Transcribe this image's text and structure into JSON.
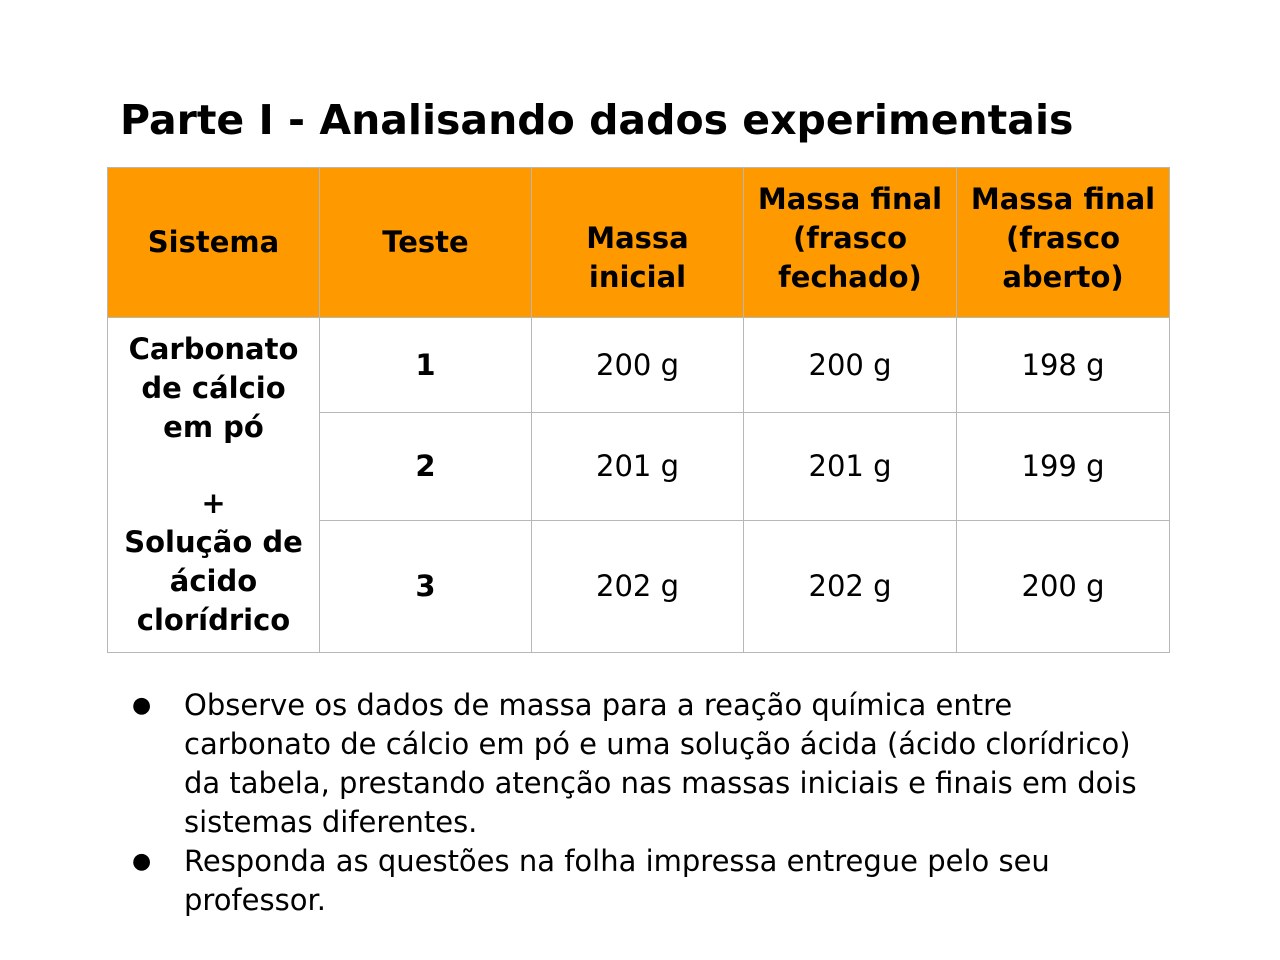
{
  "title": "Parte I - Analisando dados experimentais",
  "table": {
    "headers": [
      "Sistema",
      "Teste",
      "Massa inicial",
      "Massa final (frasco fechado)",
      "Massa final (frasco aberto)"
    ],
    "system": {
      "line1": "Carbonato de cálcio em pó",
      "plus": "+",
      "line2": "Solução de ácido clorídrico"
    },
    "rows": [
      {
        "teste": "1",
        "inicial": "200 g",
        "fechado": "200 g",
        "aberto": "198 g"
      },
      {
        "teste": "2",
        "inicial": "201 g",
        "fechado": "201 g",
        "aberto": "199 g"
      },
      {
        "teste": "3",
        "inicial": "202 g",
        "fechado": "202 g",
        "aberto": "200 g"
      }
    ]
  },
  "notes": {
    "bullet": "●",
    "items": [
      "Observe os dados de massa para a reação química entre carbonato de cálcio em pó e uma solução ácida (ácido clorídrico) da tabela, prestando atenção nas massas iniciais e finais em dois sistemas diferentes.",
      "Responda as questões na folha impressa entregue pelo seu professor."
    ]
  }
}
